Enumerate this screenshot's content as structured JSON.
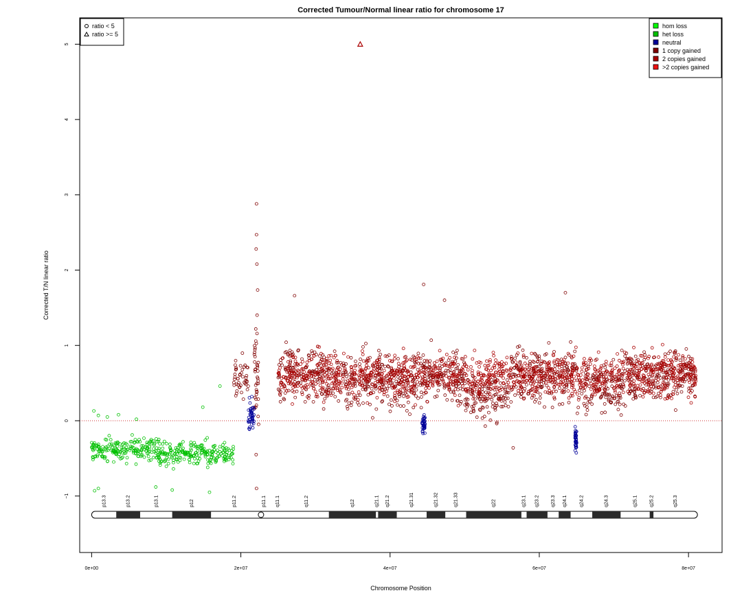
{
  "chart_data": {
    "type": "scatter",
    "title": "Corrected Tumour/Normal linear ratio for chromosome  17",
    "xlabel": "Chromosome Position",
    "ylabel": "Corrected T/N linear ratio",
    "xlim": [
      -1600000,
      84500000
    ],
    "ylim": [
      -1.75,
      5.35
    ],
    "x_ticks": [
      {
        "value": 0,
        "label": "0e+00"
      },
      {
        "value": 20000000,
        "label": "2e+07"
      },
      {
        "value": 40000000,
        "label": "4e+07"
      },
      {
        "value": 60000000,
        "label": "6e+07"
      },
      {
        "value": 80000000,
        "label": "8e+07"
      }
    ],
    "y_ticks": [
      {
        "value": -1,
        "label": "−1"
      },
      {
        "value": 0,
        "label": "0"
      },
      {
        "value": 1,
        "label": "1"
      },
      {
        "value": 2,
        "label": "2"
      },
      {
        "value": 3,
        "label": "3"
      },
      {
        "value": 4,
        "label": "4"
      },
      {
        "value": 5,
        "label": "5"
      }
    ],
    "reference_line": {
      "y": 0,
      "color": "#cc3333",
      "style": "dotted"
    },
    "shape_legend": {
      "position": "top-left",
      "entries": [
        {
          "shape": "circle",
          "label": "ratio < 5"
        },
        {
          "shape": "triangle",
          "label": "ratio >= 5"
        }
      ]
    },
    "color_legend": {
      "position": "top-right",
      "entries": [
        {
          "label": "hom loss",
          "color": "#00ff00"
        },
        {
          "label": "het loss",
          "color": "#00c000"
        },
        {
          "label": "neutral",
          "color": "#000099"
        },
        {
          "label": "1 copy gained",
          "color": "#7f0000"
        },
        {
          "label": "2 copies gained",
          "color": "#aa0000"
        },
        {
          "label": ">2 copies gained",
          "color": "#ee1111"
        }
      ]
    },
    "series": [
      {
        "name": "het loss",
        "color": "#00c000",
        "shape": "circle",
        "segments": [
          {
            "x_start": 0,
            "x_end": 9000000,
            "mean": -0.38,
            "spread": 0.11
          },
          {
            "x_start": 9000000,
            "x_end": 19000000,
            "mean": -0.44,
            "spread": 0.11
          }
        ],
        "outliers": [
          {
            "x": 300000,
            "y": 0.13
          },
          {
            "x": 900000,
            "y": 0.07
          },
          {
            "x": 2100000,
            "y": 0.05
          },
          {
            "x": 3600000,
            "y": 0.08
          },
          {
            "x": 6000000,
            "y": 0.02
          },
          {
            "x": 14900000,
            "y": 0.18
          },
          {
            "x": 17200000,
            "y": 0.46
          },
          {
            "x": 400000,
            "y": -0.93
          },
          {
            "x": 900000,
            "y": -0.9
          },
          {
            "x": 8600000,
            "y": -0.88
          },
          {
            "x": 10800000,
            "y": -0.92
          },
          {
            "x": 15800000,
            "y": -0.95
          }
        ]
      },
      {
        "name": "1 copy gained",
        "color": "#7f0000",
        "shape": "circle",
        "segments": [
          {
            "x_start": 19000000,
            "x_end": 21000000,
            "mean": 0.52,
            "spread": 0.22
          },
          {
            "x_start": 21800000,
            "x_end": 22400000,
            "mean": 0.7,
            "spread": 0.55
          },
          {
            "x_start": 25000000,
            "x_end": 31000000,
            "mean": 0.6,
            "spread": 0.25
          },
          {
            "x_start": 31000000,
            "x_end": 45000000,
            "mean": 0.52,
            "spread": 0.25
          },
          {
            "x_start": 45000000,
            "x_end": 50000000,
            "mean": 0.58,
            "spread": 0.25
          },
          {
            "x_start": 50000000,
            "x_end": 56000000,
            "mean": 0.32,
            "spread": 0.2
          },
          {
            "x_start": 56000000,
            "x_end": 65000000,
            "mean": 0.6,
            "spread": 0.25
          },
          {
            "x_start": 65000000,
            "x_end": 71000000,
            "mean": 0.45,
            "spread": 0.23
          },
          {
            "x_start": 71000000,
            "x_end": 81000000,
            "mean": 0.58,
            "spread": 0.25
          }
        ],
        "outliers": [
          {
            "x": 22100000,
            "y": 2.88
          },
          {
            "x": 22100000,
            "y": 2.47
          },
          {
            "x": 22050000,
            "y": 2.28
          },
          {
            "x": 22150000,
            "y": 2.08
          },
          {
            "x": 44500000,
            "y": 1.81
          },
          {
            "x": 63500000,
            "y": 1.7
          },
          {
            "x": 27200000,
            "y": 1.66
          },
          {
            "x": 47300000,
            "y": 1.6
          },
          {
            "x": 56500000,
            "y": -0.36
          },
          {
            "x": 22100000,
            "y": -0.9
          },
          {
            "x": 22050000,
            "y": -0.45
          }
        ]
      },
      {
        "name": "2 copies gained",
        "color": "#aa0000",
        "shape": "circle",
        "segments": [
          {
            "x_start": 25000000,
            "x_end": 81000000,
            "mean": 0.6,
            "spread": 0.2
          }
        ],
        "outliers": []
      },
      {
        "name": "neutral",
        "color": "#000099",
        "shape": "circle",
        "segments": [
          {
            "x_start": 21000000,
            "x_end": 21800000,
            "mean": 0.08,
            "spread": 0.15
          },
          {
            "x_start": 44300000,
            "x_end": 44700000,
            "mean": -0.05,
            "spread": 0.08
          },
          {
            "x_start": 64800000,
            "x_end": 65000000,
            "mean": -0.25,
            "spread": 0.12
          }
        ],
        "outliers": []
      },
      {
        "name": "ratio >= 5",
        "color": "#aa0000",
        "shape": "triangle",
        "segments": [],
        "outliers": [
          {
            "x": 36000000,
            "y": 5.0
          }
        ]
      }
    ],
    "ideogram": {
      "chrom_start": 0,
      "chrom_end": 81200000,
      "centromere": 22700000,
      "bands": [
        {
          "name": "p13.3",
          "start": 0,
          "end": 3300000,
          "stain": "gneg"
        },
        {
          "name": "p13.2",
          "start": 3300000,
          "end": 6500000,
          "stain": "gpos"
        },
        {
          "name": "p13.1",
          "start": 6500000,
          "end": 10800000,
          "stain": "gneg"
        },
        {
          "name": "p12",
          "start": 10800000,
          "end": 16000000,
          "stain": "gpos"
        },
        {
          "name": "p11.2",
          "start": 16000000,
          "end": 22200000,
          "stain": "gneg"
        },
        {
          "name": "p11.1",
          "start": 22200000,
          "end": 24000000,
          "stain": "acen"
        },
        {
          "name": "q11.1",
          "start": 24000000,
          "end": 25800000,
          "stain": "acen"
        },
        {
          "name": "q11.2",
          "start": 25800000,
          "end": 31800000,
          "stain": "gneg"
        },
        {
          "name": "q12",
          "start": 31800000,
          "end": 38100000,
          "stain": "gpos"
        },
        {
          "name": "q21.1",
          "start": 38100000,
          "end": 38400000,
          "stain": "gneg"
        },
        {
          "name": "q21.2",
          "start": 38400000,
          "end": 40900000,
          "stain": "gpos"
        },
        {
          "name": "q21.31",
          "start": 40900000,
          "end": 44900000,
          "stain": "gneg"
        },
        {
          "name": "q21.32",
          "start": 44900000,
          "end": 47400000,
          "stain": "gpos"
        },
        {
          "name": "q21.33",
          "start": 47400000,
          "end": 50200000,
          "stain": "gneg"
        },
        {
          "name": "q22",
          "start": 50200000,
          "end": 57600000,
          "stain": "gpos"
        },
        {
          "name": "q23.1",
          "start": 57600000,
          "end": 58300000,
          "stain": "gneg"
        },
        {
          "name": "q23.2",
          "start": 58300000,
          "end": 61100000,
          "stain": "gpos"
        },
        {
          "name": "q23.3",
          "start": 61100000,
          "end": 62600000,
          "stain": "gneg"
        },
        {
          "name": "q24.1",
          "start": 62600000,
          "end": 64200000,
          "stain": "gpos"
        },
        {
          "name": "q24.2",
          "start": 64200000,
          "end": 67100000,
          "stain": "gneg"
        },
        {
          "name": "q24.3",
          "start": 67100000,
          "end": 70900000,
          "stain": "gpos"
        },
        {
          "name": "q25.1",
          "start": 70900000,
          "end": 74800000,
          "stain": "gneg"
        },
        {
          "name": "q25.2",
          "start": 74800000,
          "end": 75300000,
          "stain": "gpos"
        },
        {
          "name": "q25.3",
          "start": 75300000,
          "end": 81200000,
          "stain": "gneg"
        }
      ]
    }
  }
}
